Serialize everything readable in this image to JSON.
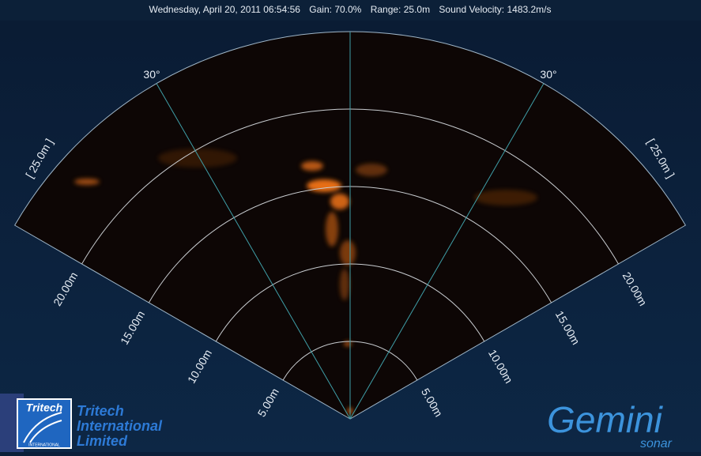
{
  "header": {
    "timestamp": "Wednesday, April 20, 2011 06:54:56",
    "gain": "Gain: 70.0%",
    "range": "Range: 25.0m",
    "sound_velocity": "Sound Velocity: 1483.2m/s"
  },
  "sonar": {
    "range_labels": [
      "5.00m",
      "10.00m",
      "15.00m",
      "20.00m"
    ],
    "bearing_labels": [
      "30°",
      "30°"
    ],
    "max_range_labels": [
      "[ 25.0m ]",
      "[ 25.0m ]"
    ]
  },
  "logos": {
    "badge_title": "Tritech",
    "badge_subtitle": "INTERNATIONAL",
    "company_lines": [
      "Tritech",
      "International",
      "Limited"
    ],
    "product": "Gemini",
    "product_sub": "sonar"
  }
}
